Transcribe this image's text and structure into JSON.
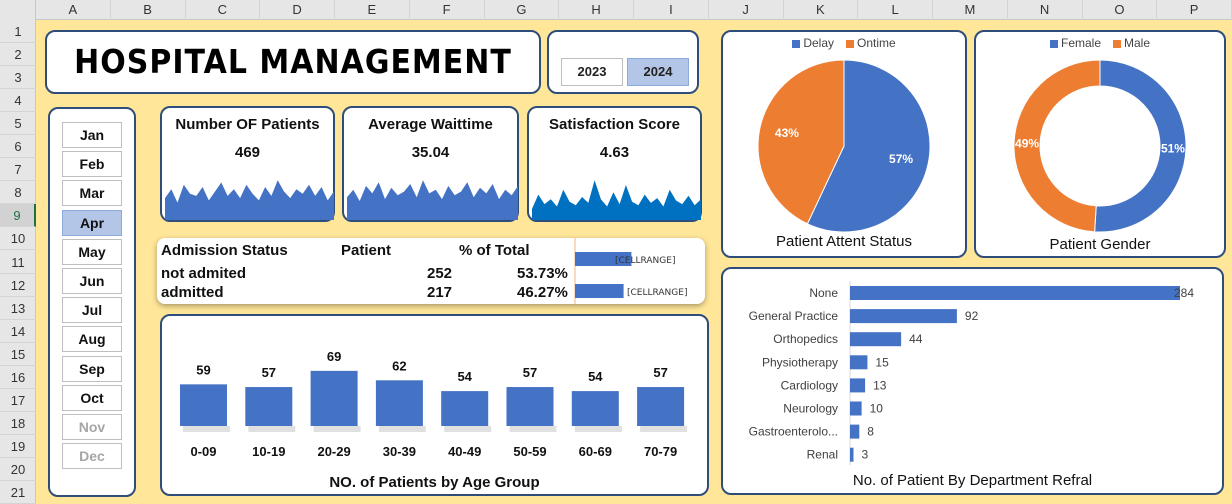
{
  "columns": [
    "A",
    "B",
    "C",
    "D",
    "E",
    "F",
    "G",
    "H",
    "I",
    "J",
    "K",
    "L",
    "M",
    "N",
    "O",
    "P"
  ],
  "rows": [
    "1",
    "2",
    "3",
    "4",
    "5",
    "6",
    "7",
    "8",
    "9",
    "10",
    "11",
    "12",
    "13",
    "14",
    "15",
    "16",
    "17",
    "18",
    "19",
    "20",
    "21"
  ],
  "selected_row": "9",
  "title": "HOSPITAL MANAGEMENT",
  "years": [
    {
      "label": "2023",
      "selected": false
    },
    {
      "label": "2024",
      "selected": true
    }
  ],
  "months": [
    {
      "label": "Jan",
      "state": "normal"
    },
    {
      "label": "Feb",
      "state": "normal"
    },
    {
      "label": "Mar",
      "state": "normal"
    },
    {
      "label": "Apr",
      "state": "selected"
    },
    {
      "label": "May",
      "state": "normal"
    },
    {
      "label": "Jun",
      "state": "normal"
    },
    {
      "label": "Jul",
      "state": "normal"
    },
    {
      "label": "Aug",
      "state": "normal"
    },
    {
      "label": "Sep",
      "state": "normal"
    },
    {
      "label": "Oct",
      "state": "normal"
    },
    {
      "label": "Nov",
      "state": "dim"
    },
    {
      "label": "Dec",
      "state": "dim"
    }
  ],
  "kpis": [
    {
      "title": "Number OF Patients",
      "value": "469",
      "color": "#4472c4",
      "spark": [
        8,
        12,
        6,
        14,
        10,
        9,
        13,
        7,
        11,
        15,
        9,
        12,
        8,
        14,
        10,
        7,
        13,
        9,
        16,
        11,
        8,
        12,
        10,
        14,
        9,
        13,
        7,
        11
      ]
    },
    {
      "title": "Average Waittime",
      "value": "35.04",
      "color": "#4472c4",
      "spark": [
        10,
        14,
        8,
        16,
        12,
        18,
        9,
        15,
        11,
        13,
        17,
        10,
        19,
        12,
        14,
        9,
        16,
        11,
        13,
        18,
        10,
        15,
        12,
        17,
        9,
        14,
        11,
        16
      ]
    },
    {
      "title": "Satisfaction Score",
      "value": "4.63",
      "color": "#0070c0",
      "spark": [
        6,
        18,
        10,
        14,
        8,
        22,
        12,
        9,
        16,
        11,
        30,
        14,
        8,
        20,
        10,
        26,
        12,
        9,
        18,
        11,
        15,
        8,
        22,
        13,
        10,
        17,
        9,
        14
      ]
    }
  ],
  "admission": {
    "headers": {
      "status": "Admission Status",
      "patient": "Patient",
      "pct": "% of Total"
    },
    "rows": [
      {
        "status": "not admited",
        "patient": "252",
        "pct": "53.73%",
        "bar_label": "[CELLRANGE]",
        "share": 0.5373
      },
      {
        "status": "admitted",
        "patient": "217",
        "pct": "46.27%",
        "bar_label": "[CELLRANGE]",
        "share": 0.4627
      }
    ]
  },
  "chart_data": [
    {
      "type": "bar",
      "title": "NO. of Patients by Age Group",
      "categories": [
        "0-09",
        "10-19",
        "20-29",
        "30-39",
        "40-49",
        "50-59",
        "60-69",
        "70-79"
      ],
      "values": [
        59,
        57,
        69,
        62,
        54,
        57,
        54,
        57
      ],
      "color": "#4472c4"
    },
    {
      "type": "pie",
      "title": "Patient Attent Status",
      "labels": [
        "Delay",
        "Ontime"
      ],
      "values": [
        57,
        43
      ],
      "colors": [
        "#4472c4",
        "#ed7d31"
      ]
    },
    {
      "type": "pie",
      "subtype": "donut",
      "title": "Patient Gender",
      "labels": [
        "Female",
        "Male"
      ],
      "values": [
        51,
        49
      ],
      "colors": [
        "#4472c4",
        "#ed7d31"
      ]
    },
    {
      "type": "bar",
      "orientation": "horizontal",
      "title": "No. of Patient By Department Refral",
      "categories": [
        "None",
        "General Practice",
        "Orthopedics",
        "Physiotherapy",
        "Cardiology",
        "Neurology",
        "Gastroenterolo...",
        "Renal"
      ],
      "values": [
        284,
        92,
        44,
        15,
        13,
        10,
        8,
        3
      ],
      "color": "#4472c4"
    }
  ]
}
